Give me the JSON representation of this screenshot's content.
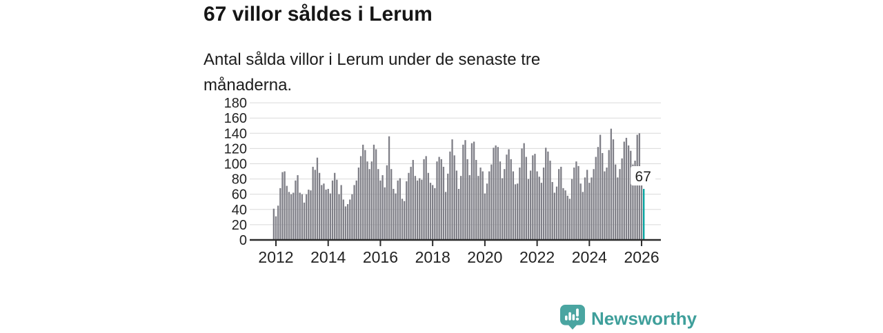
{
  "header": {
    "title": "67 villor såldes i Lerum",
    "subtitle": "Antal sålda villor i Lerum under de senaste tre månaderna."
  },
  "chart_data": {
    "type": "bar",
    "title": "67 villor såldes i Lerum",
    "subtitle": "Antal sålda villor i Lerum under de senaste tre månaderna.",
    "interval": "monthly",
    "x_start": "2011-12",
    "x_end": "2026-02",
    "ylim": [
      0,
      180
    ],
    "y_ticks": [
      0,
      20,
      40,
      60,
      80,
      100,
      120,
      140,
      160,
      180
    ],
    "x_tick_labels": [
      "2012",
      "2014",
      "2016",
      "2018",
      "2020",
      "2022",
      "2024",
      "2026"
    ],
    "grid": true,
    "legend": false,
    "bar_color": "#7f7f87",
    "values": [
      41,
      31,
      45,
      68,
      89,
      90,
      71,
      63,
      60,
      62,
      78,
      85,
      62,
      60,
      49,
      60,
      66,
      65,
      96,
      92,
      108,
      88,
      72,
      74,
      66,
      67,
      61,
      78,
      88,
      79,
      60,
      72,
      53,
      44,
      47,
      53,
      60,
      72,
      78,
      95,
      110,
      125,
      118,
      103,
      93,
      103,
      125,
      119,
      93,
      78,
      85,
      69,
      98,
      136,
      93,
      67,
      61,
      78,
      81,
      54,
      51,
      77,
      88,
      96,
      105,
      84,
      78,
      81,
      79,
      106,
      110,
      88,
      75,
      72,
      68,
      103,
      109,
      106,
      96,
      63,
      87,
      116,
      132,
      111,
      91,
      67,
      84,
      125,
      131,
      106,
      85,
      127,
      129,
      105,
      84,
      95,
      90,
      61,
      74,
      90,
      99,
      121,
      124,
      122,
      103,
      81,
      93,
      112,
      119,
      106,
      90,
      73,
      74,
      95,
      120,
      127,
      109,
      80,
      91,
      111,
      113,
      90,
      83,
      75,
      95,
      121,
      116,
      104,
      76,
      62,
      70,
      93,
      96,
      68,
      65,
      58,
      54,
      80,
      95,
      103,
      97,
      74,
      63,
      82,
      92,
      75,
      82,
      93,
      109,
      122,
      138,
      114,
      90,
      95,
      118,
      146,
      132,
      99,
      82,
      93,
      107,
      129,
      134,
      124,
      117,
      99,
      104,
      138,
      140,
      96,
      67
    ],
    "highlight": {
      "position": "last",
      "value": 67,
      "label": "67",
      "color": "#00a29e"
    }
  },
  "footer": {
    "brand": "Newsworthy",
    "brand_color": "#3f9f9b",
    "logo_icon": "bar-chart-speech-bubble"
  },
  "colors": {
    "axis": "#2b2b2b",
    "grid": "#d9d9d9",
    "tick_text": "#222222",
    "label_text": "#1f1f1f",
    "bar": "#7f7f87",
    "highlight": "#00a29e"
  }
}
